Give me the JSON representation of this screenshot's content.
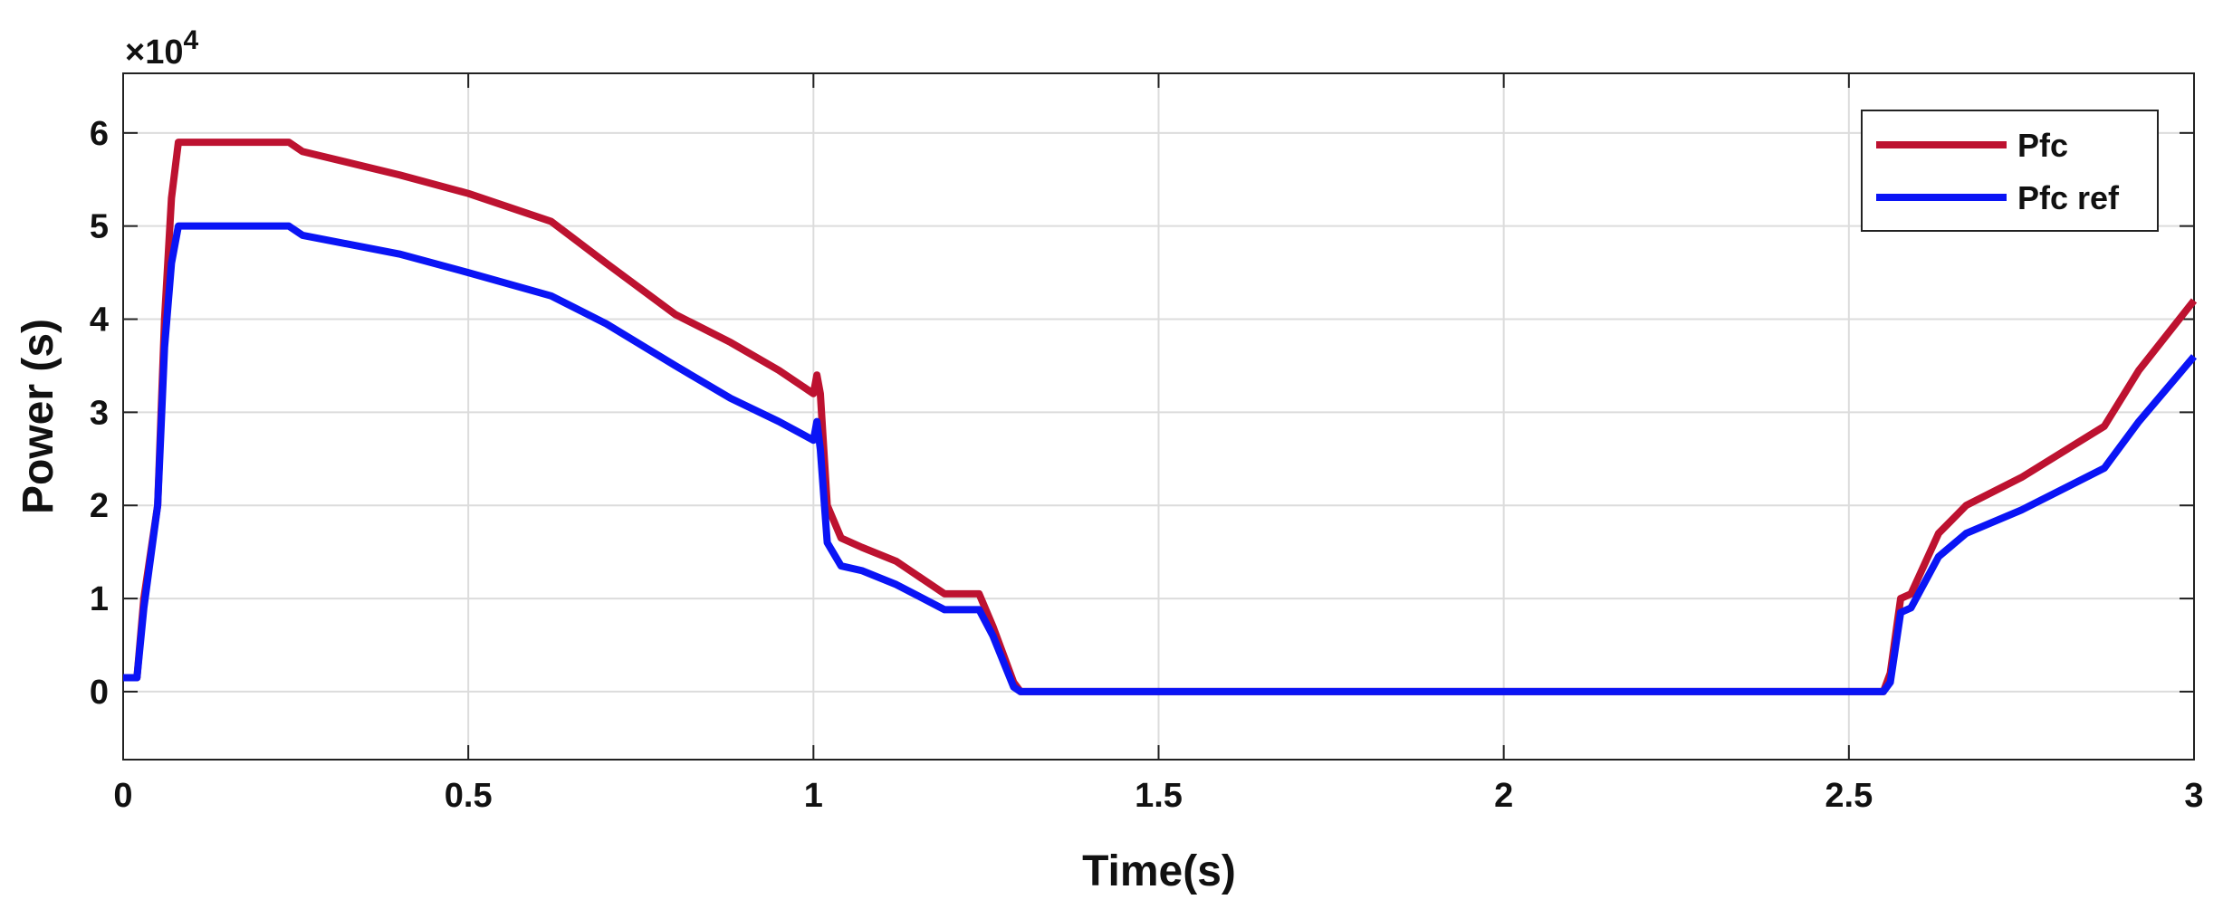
{
  "chart_data": {
    "type": "line",
    "xlabel": "Time(s)",
    "ylabel": "Power (s)",
    "y_multiplier": {
      "base": "×10",
      "exponent": "4"
    },
    "x": [
      0,
      0.02,
      0.03,
      0.05,
      0.06,
      0.07,
      0.08,
      0.24,
      0.26,
      0.4,
      0.5,
      0.62,
      0.7,
      0.8,
      0.88,
      0.95,
      1.0,
      1.005,
      1.01,
      1.02,
      1.04,
      1.07,
      1.12,
      1.19,
      1.24,
      1.26,
      1.29,
      1.3,
      2.55,
      2.56,
      2.575,
      2.59,
      2.63,
      2.67,
      2.75,
      2.87,
      2.92,
      3
    ],
    "series": [
      {
        "name": "Pfc",
        "color": "#bd1230",
        "values": [
          0.15,
          0.15,
          1,
          2,
          4,
          5.3,
          5.9,
          5.9,
          5.8,
          5.55,
          5.35,
          5.05,
          4.6,
          4.05,
          3.75,
          3.45,
          3.2,
          3.4,
          3.2,
          2.0,
          1.65,
          1.55,
          1.4,
          1.05,
          1.05,
          0.7,
          0.1,
          0,
          0,
          0.2,
          1.0,
          1.05,
          1.7,
          2.0,
          2.3,
          2.85,
          3.45,
          4.2
        ]
      },
      {
        "name": "Pfc ref",
        "color": "#0a14f5",
        "values": [
          0.15,
          0.15,
          0.9,
          2,
          3.7,
          4.6,
          5.0,
          5.0,
          4.9,
          4.7,
          4.5,
          4.25,
          3.95,
          3.5,
          3.15,
          2.9,
          2.7,
          2.9,
          2.6,
          1.6,
          1.35,
          1.3,
          1.15,
          0.88,
          0.88,
          0.6,
          0.05,
          0,
          0,
          0.1,
          0.85,
          0.9,
          1.45,
          1.7,
          1.95,
          2.4,
          2.9,
          3.6
        ]
      }
    ],
    "xlim": [
      0,
      3
    ],
    "ylim": [
      -0.73,
      6.64
    ],
    "xticks": [
      0,
      0.5,
      1,
      1.5,
      2,
      2.5,
      3
    ],
    "yticks": [
      0,
      1,
      2,
      3,
      4,
      5,
      6
    ],
    "grid": true,
    "legend": "upper right"
  }
}
